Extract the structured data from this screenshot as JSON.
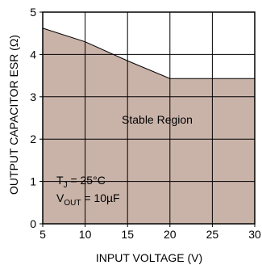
{
  "chart_data": {
    "type": "area",
    "title": "",
    "xlabel": "INPUT VOLTAGE (V)",
    "ylabel": "OUTPUT CAPACITOR ESR (Ω)",
    "xlim": [
      5,
      30
    ],
    "ylim": [
      0,
      5
    ],
    "x_ticks": [
      "5",
      "10",
      "15",
      "20",
      "25",
      "30"
    ],
    "y_ticks": [
      "0",
      "1",
      "2",
      "3",
      "4",
      "5"
    ],
    "grid": true,
    "series": [
      {
        "x": [
          5,
          10,
          15,
          20,
          30
        ],
        "y": [
          4.62,
          4.3,
          3.85,
          3.43,
          3.43
        ]
      }
    ],
    "fill_color": "#c9b3a9",
    "annotations": {
      "region_label": "Stable Region",
      "tj_prefix": "T",
      "tj_sub": "J",
      "tj_value": " = 25°C",
      "vout_prefix": "V",
      "vout_sub": "OUT",
      "vout_value": " = 10µF"
    }
  }
}
